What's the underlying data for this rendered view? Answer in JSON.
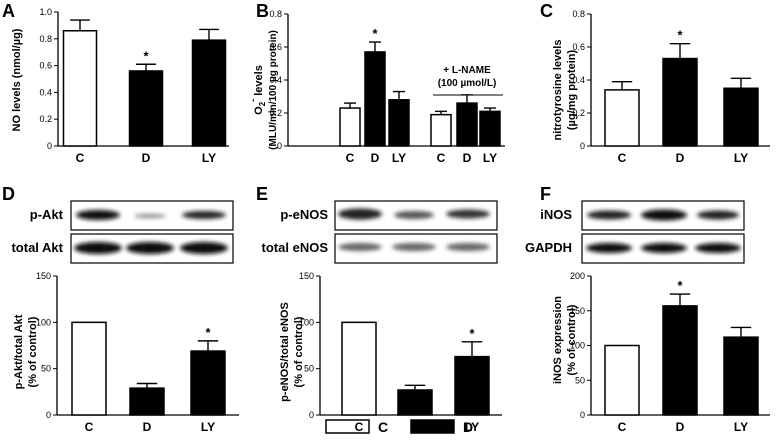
{
  "chart_data": [
    {
      "type": "bar",
      "panel": "A",
      "ylabel": "NO levels (nmol/µg)",
      "ylim": [
        0,
        1.0
      ],
      "yticks": [
        "0",
        "0.2",
        "0.4",
        "0.6",
        "0.8",
        "1.0"
      ],
      "categories": [
        "C",
        "D",
        "LY"
      ],
      "values": [
        0.86,
        0.56,
        0.79
      ],
      "errors": [
        0.08,
        0.05,
        0.08
      ],
      "fills": [
        "#ffffff",
        "#000000",
        "#000000"
      ],
      "significance": [
        "",
        "*",
        ""
      ]
    },
    {
      "type": "bar",
      "panel": "B",
      "ylabel_line1": "O",
      "ylabel_sub": "2",
      "ylabel_sup": "-",
      "ylabel_rest": " levels",
      "ylabel_line2": "(MLU/min/100 µg protein)",
      "ylim": [
        0,
        0.8
      ],
      "yticks": [
        "0",
        "0.2",
        "0.4",
        "0.6",
        "0.8"
      ],
      "categories": [
        "C",
        "D",
        "LY",
        "C",
        "D",
        "LY"
      ],
      "values": [
        0.23,
        0.57,
        0.28,
        0.19,
        0.26,
        0.21
      ],
      "errors": [
        0.03,
        0.06,
        0.05,
        0.02,
        0.05,
        0.02
      ],
      "fills": [
        "#ffffff",
        "#000000",
        "#000000",
        "#ffffff",
        "#000000",
        "#000000"
      ],
      "significance": [
        "",
        "*",
        "",
        "",
        "",
        ""
      ],
      "group_note_line1": "+ L-NAME",
      "group_note_line2": "(100 µmol/L)"
    },
    {
      "type": "bar",
      "panel": "C",
      "ylabel_line1": "nitrotyrosine levels",
      "ylabel_line2": "(µg/mg protein)",
      "ylim": [
        0,
        0.8
      ],
      "yticks": [
        "0",
        "0.2",
        "0.4",
        "0.6",
        "0.8"
      ],
      "categories": [
        "C",
        "D",
        "LY"
      ],
      "values": [
        0.34,
        0.53,
        0.35
      ],
      "errors": [
        0.05,
        0.09,
        0.06
      ],
      "fills": [
        "#ffffff",
        "#000000",
        "#000000"
      ],
      "significance": [
        "",
        "*",
        ""
      ]
    },
    {
      "type": "bar",
      "panel": "D",
      "blot_labels": [
        "p-Akt",
        "total Akt"
      ],
      "ylabel_line1": "p-Akt/total Akt",
      "ylabel_line2": "(% of control)",
      "ylim": [
        0,
        150
      ],
      "yticks": [
        "0",
        "50",
        "100",
        "150"
      ],
      "categories": [
        "C",
        "D",
        "LY"
      ],
      "values": [
        100,
        29,
        69
      ],
      "errors": [
        0,
        5,
        11
      ],
      "fills": [
        "#ffffff",
        "#000000",
        "#000000"
      ],
      "significance": [
        "",
        "",
        "*"
      ]
    },
    {
      "type": "bar",
      "panel": "E",
      "blot_labels": [
        "p-eNOS",
        "total eNOS"
      ],
      "ylabel_line1": "p-eNOS/total eNOS",
      "ylabel_line2": "(% of control)",
      "ylim": [
        0,
        150
      ],
      "yticks": [
        "0",
        "50",
        "100",
        "150"
      ],
      "categories": [
        "C",
        "D",
        "LY"
      ],
      "values": [
        100,
        27,
        63
      ],
      "errors": [
        0,
        5,
        16
      ],
      "fills": [
        "#ffffff",
        "#000000",
        "#000000"
      ],
      "significance": [
        "",
        "",
        "*"
      ]
    },
    {
      "type": "bar",
      "panel": "F",
      "blot_labels": [
        "iNOS",
        "GAPDH"
      ],
      "ylabel_line1": "iNOS expression",
      "ylabel_line2": "(% of control)",
      "ylim": [
        0,
        200
      ],
      "yticks": [
        "0",
        "50",
        "100",
        "150",
        "200"
      ],
      "categories": [
        "C",
        "D",
        "LY"
      ],
      "values": [
        100,
        157,
        112
      ],
      "errors": [
        0,
        17,
        14
      ],
      "fills": [
        "#ffffff",
        "#000000",
        "#000000"
      ],
      "significance": [
        "",
        "*",
        ""
      ]
    }
  ],
  "legend": [
    {
      "label": "C",
      "fill": "#ffffff"
    },
    {
      "label": "D",
      "fill": "#000000"
    }
  ]
}
